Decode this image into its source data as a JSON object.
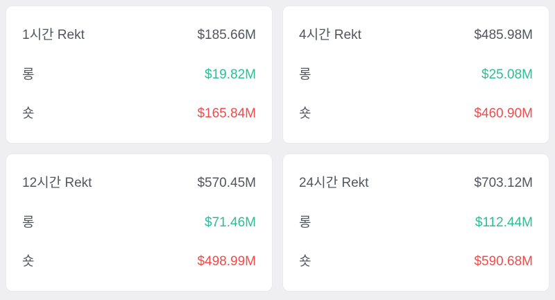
{
  "widget": {
    "description_labels": {
      "long": "롱",
      "short": "숏"
    },
    "colors": {
      "background": "#efeff1",
      "card_background": "#ffffff",
      "text_dark": "#51555e",
      "long_green": "#2dbd96",
      "short_red": "#f04b4b"
    },
    "cards": [
      {
        "title": "1시간 Rekt",
        "total": "$185.66M",
        "long": "$19.82M",
        "short": "$165.84M"
      },
      {
        "title": "4시간 Rekt",
        "total": "$485.98M",
        "long": "$25.08M",
        "short": "$460.90M"
      },
      {
        "title": "12시간 Rekt",
        "total": "$570.45M",
        "long": "$71.46M",
        "short": "$498.99M"
      },
      {
        "title": "24시간 Rekt",
        "total": "$703.12M",
        "long": "$112.44M",
        "short": "$590.68M"
      }
    ]
  }
}
